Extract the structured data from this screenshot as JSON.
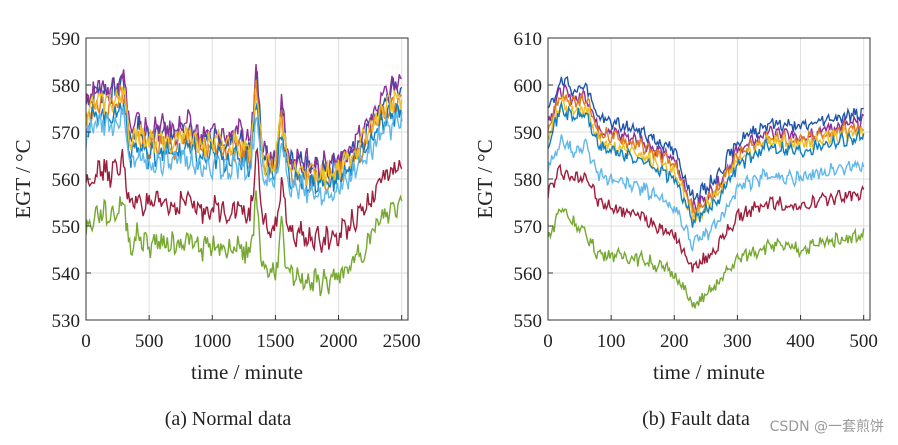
{
  "watermark": "CSDN @一套煎饼",
  "chart_data": [
    {
      "type": "line",
      "caption": "(a)  Normal data",
      "xlabel": "time / minute",
      "ylabel": "EGT / °C",
      "xlim": [
        0,
        2550
      ],
      "ylim": [
        530,
        590
      ],
      "xticks": [
        0,
        500,
        1000,
        1500,
        2000,
        2500
      ],
      "yticks": [
        530,
        540,
        550,
        560,
        570,
        580,
        590
      ],
      "grid": true,
      "x": [
        0,
        100,
        200,
        300,
        350,
        400,
        500,
        600,
        700,
        800,
        900,
        1000,
        1100,
        1200,
        1300,
        1350,
        1400,
        1500,
        1550,
        1600,
        1700,
        1800,
        1900,
        2000,
        2100,
        2200,
        2300,
        2400,
        2500
      ],
      "series": [
        {
          "name": "s1",
          "color": "#2054a8",
          "values": [
            576,
            579,
            578,
            581,
            568,
            571,
            569,
            570,
            569,
            571,
            568,
            569,
            568,
            569,
            567,
            583,
            565,
            564,
            576,
            563,
            563,
            562,
            562,
            563,
            566,
            569,
            574,
            578,
            580
          ]
        },
        {
          "name": "s2",
          "color": "#8b2f97",
          "values": [
            577,
            580,
            579,
            583,
            570,
            572,
            570,
            571,
            570,
            572,
            569,
            570,
            569,
            570,
            568,
            584,
            566,
            565,
            577,
            564,
            564,
            563,
            563,
            564,
            567,
            570,
            575,
            579,
            581
          ]
        },
        {
          "name": "s3",
          "color": "#e07b1a",
          "values": [
            573,
            576,
            575,
            578,
            566,
            569,
            567,
            568,
            567,
            569,
            566,
            567,
            566,
            567,
            565,
            580,
            563,
            562,
            573,
            561,
            561,
            560,
            560,
            561,
            564,
            567,
            572,
            575,
            577
          ]
        },
        {
          "name": "s4",
          "color": "#0f7fc0",
          "values": [
            571,
            574,
            573,
            576,
            565,
            567,
            565,
            566,
            565,
            567,
            564,
            565,
            564,
            565,
            563,
            578,
            562,
            561,
            571,
            560,
            560,
            559,
            559,
            560,
            563,
            566,
            570,
            573,
            575
          ]
        },
        {
          "name": "s5",
          "color": "#ecc02a",
          "values": [
            574,
            577,
            576,
            579,
            567,
            570,
            568,
            569,
            568,
            570,
            567,
            568,
            567,
            568,
            566,
            581,
            564,
            563,
            574,
            562,
            562,
            561,
            561,
            562,
            565,
            568,
            573,
            576,
            578
          ]
        },
        {
          "name": "s6",
          "color": "#5fb8e8",
          "values": [
            569,
            572,
            571,
            574,
            563,
            565,
            563,
            564,
            563,
            565,
            562,
            563,
            562,
            563,
            561,
            575,
            560,
            559,
            569,
            558,
            558,
            557,
            557,
            558,
            561,
            564,
            568,
            571,
            573
          ]
        },
        {
          "name": "s7",
          "color": "#9d1e3c",
          "values": [
            559,
            562,
            561,
            564,
            553,
            556,
            554,
            555,
            554,
            556,
            553,
            554,
            553,
            554,
            552,
            566,
            550,
            549,
            560,
            548,
            548,
            547,
            547,
            548,
            551,
            554,
            558,
            561,
            563
          ]
        },
        {
          "name": "s8",
          "color": "#76a832",
          "values": [
            549,
            553,
            552,
            555,
            545,
            548,
            546,
            547,
            546,
            547,
            545,
            546,
            545,
            546,
            544,
            556,
            541,
            540,
            550,
            539,
            539,
            538,
            538,
            539,
            542,
            545,
            550,
            553,
            555
          ]
        }
      ]
    },
    {
      "type": "line",
      "caption": "(b)  Fault data",
      "xlabel": "time / minute",
      "ylabel": "EGT / °C",
      "xlim": [
        0,
        510
      ],
      "ylim": [
        550,
        610
      ],
      "xticks": [
        0,
        100,
        200,
        300,
        400,
        500
      ],
      "yticks": [
        550,
        560,
        570,
        580,
        590,
        600,
        610
      ],
      "grid": true,
      "x": [
        0,
        20,
        40,
        60,
        80,
        100,
        150,
        200,
        230,
        250,
        270,
        300,
        350,
        400,
        450,
        500
      ],
      "series": [
        {
          "name": "s1",
          "color": "#2054a8",
          "values": [
            594,
            601,
            599,
            600,
            593,
            592,
            590,
            586,
            576,
            578,
            581,
            588,
            592,
            591,
            593,
            594
          ]
        },
        {
          "name": "s2",
          "color": "#8b2f97",
          "values": [
            592,
            599,
            597,
            598,
            591,
            590,
            588,
            584,
            574,
            576,
            579,
            586,
            590,
            589,
            591,
            592
          ]
        },
        {
          "name": "s3",
          "color": "#e07b1a",
          "values": [
            591,
            598,
            596,
            597,
            590,
            589,
            587,
            583,
            573,
            575,
            578,
            585,
            589,
            588,
            590,
            591
          ]
        },
        {
          "name": "s4",
          "color": "#ecc02a",
          "values": [
            589,
            596,
            594,
            595,
            588,
            587,
            585,
            581,
            572,
            574,
            577,
            584,
            588,
            587,
            589,
            590
          ]
        },
        {
          "name": "s5",
          "color": "#0f7fc0",
          "values": [
            588,
            595,
            593,
            594,
            587,
            586,
            584,
            580,
            571,
            573,
            576,
            583,
            587,
            586,
            588,
            589
          ]
        },
        {
          "name": "s6",
          "color": "#5fb8e8",
          "values": [
            582,
            588,
            586,
            587,
            581,
            580,
            578,
            574,
            566,
            568,
            571,
            578,
            581,
            580,
            582,
            583
          ]
        },
        {
          "name": "s7",
          "color": "#9d1e3c",
          "values": [
            577,
            582,
            580,
            581,
            575,
            574,
            572,
            568,
            561,
            563,
            566,
            572,
            575,
            574,
            576,
            577
          ]
        },
        {
          "name": "s8",
          "color": "#76a832",
          "values": [
            567,
            574,
            571,
            568,
            564,
            564,
            563,
            560,
            553,
            555,
            558,
            563,
            566,
            565,
            567,
            568
          ]
        }
      ]
    }
  ]
}
